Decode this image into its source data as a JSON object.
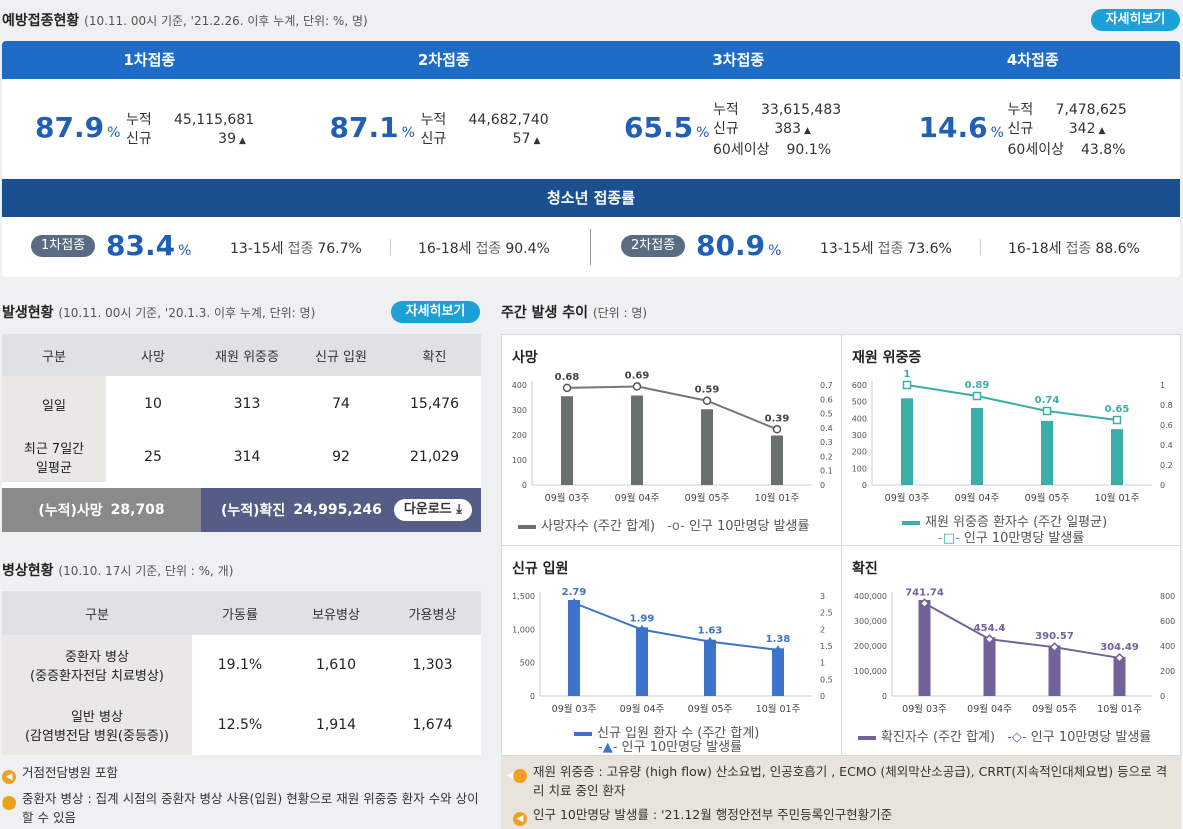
{
  "vaccine": {
    "title": "예방접종현황",
    "subtitle": "(10.11. 00시 기준, '21.2.26. 이후 누계, 단위: %, 명)",
    "more_label": "자세히보기",
    "doses": [
      {
        "label": "1차접종",
        "rate": "87.9",
        "unit": "%",
        "cum_label": "누적",
        "cum": "45,115,681",
        "new_label": "신규",
        "new": "39",
        "elder_label": "",
        "elder": ""
      },
      {
        "label": "2차접종",
        "rate": "87.1",
        "unit": "%",
        "cum_label": "누적",
        "cum": "44,682,740",
        "new_label": "신규",
        "new": "57",
        "elder_label": "",
        "elder": ""
      },
      {
        "label": "3차접종",
        "rate": "65.5",
        "unit": "%",
        "cum_label": "누적",
        "cum": "33,615,483",
        "new_label": "신규",
        "new": "383",
        "elder_label": "60세이상",
        "elder": "90.1%"
      },
      {
        "label": "4차접종",
        "rate": "14.6",
        "unit": "%",
        "cum_label": "누적",
        "cum": "7,478,625",
        "new_label": "신규",
        "new": "342",
        "elder_label": "60세이상",
        "elder": "43.8%"
      }
    ],
    "teen": {
      "title": "청소년 접종률",
      "first": {
        "pill": "1차접종",
        "rate": "83.4",
        "unit": "%",
        "a_age": "13-15세",
        "a_lab": "접종",
        "a_val": "76.7%",
        "b_age": "16-18세",
        "b_lab": "접종",
        "b_val": "90.4%"
      },
      "second": {
        "pill": "2차접종",
        "rate": "80.9",
        "unit": "%",
        "a_age": "13-15세",
        "a_lab": "접종",
        "a_val": "73.6%",
        "b_age": "16-18세",
        "b_lab": "접종",
        "b_val": "88.6%"
      }
    }
  },
  "outbreak": {
    "title": "발생현황",
    "subtitle": "(10.11. 00시 기준, '20.1.3. 이후 누계, 단위: 명)",
    "more_label": "자세히보기",
    "headers": [
      "구분",
      "사망",
      "재원 위중증",
      "신규 입원",
      "확진"
    ],
    "rows": [
      {
        "label": "일일",
        "label2": "",
        "values": [
          "10",
          "313",
          "74",
          "15,476"
        ]
      },
      {
        "label": "최근 7일간",
        "label2": "일평균",
        "values": [
          "25",
          "314",
          "92",
          "21,029"
        ]
      }
    ],
    "cum_death_label": "(누적)사망",
    "cum_death": "28,708",
    "cum_conf_label": "(누적)확진",
    "cum_conf": "24,995,246",
    "download_label": "다운로드"
  },
  "beds": {
    "title": "병상현황",
    "subtitle": "(10.10. 17시 기준, 단위 : %, 개)",
    "headers": [
      "구분",
      "가동률",
      "보유병상",
      "가용병상"
    ],
    "rows": [
      {
        "label": "중환자 병상",
        "label2": "(중증환자전담 치료병상)",
        "values": [
          "19.1%",
          "1,610",
          "1,303"
        ]
      },
      {
        "label": "일반 병상",
        "label2": "(감염병전담 병원(중등증))",
        "values": [
          "12.5%",
          "1,914",
          "1,674"
        ]
      }
    ],
    "notes": [
      "거점전담병원 포함",
      "중환자 병상 : 집계 시점의 중환자 병상 사용(입원) 현황으로 재원 위중증 환자 수와 상이할 수 있음"
    ]
  },
  "weekly": {
    "title": "주간 발생 추이",
    "subtitle": "(단위 : 명)",
    "notes": [
      "재원 위중증 : 고유량 (high flow) 산소요법, 인공호흡기 , ECMO (체외막산소공급), CRRT(지속적인대체요법) 등으로 격리 치료 중인 환자",
      "인구 10만명당 발생률 : '21.12월 행정안전부 주민등록인구현황기준"
    ]
  },
  "colors": {
    "death": "#68716e",
    "severe": "#3aaea8",
    "admit": "#3d73c8",
    "conf": "#73629a"
  },
  "chart_data": [
    {
      "type": "bar",
      "title": "사망",
      "categories": [
        "09월 03주",
        "09월 04주",
        "09월 05주",
        "10월 01주"
      ],
      "series": [
        {
          "name": "사망자수 (주간 합계)",
          "values": [
            355,
            358,
            303,
            198
          ]
        },
        {
          "name": "인구 10만명당 발생률",
          "values": [
            0.68,
            0.69,
            0.59,
            0.39
          ],
          "labels": [
            "0.68",
            "0.69",
            "0.59",
            "0.39"
          ],
          "axis": "right"
        }
      ],
      "ylim": [
        0,
        400
      ],
      "yticks": [
        "0",
        "100",
        "200",
        "300",
        "400"
      ],
      "y2lim": [
        0,
        0.7
      ],
      "y2ticks": [
        "0",
        "0.1",
        "0.2",
        "0.3",
        "0.4",
        "0.5",
        "0.6",
        "0.7"
      ]
    },
    {
      "type": "bar",
      "title": "재원 위중증",
      "categories": [
        "09월 03주",
        "09월 04주",
        "09월 05주",
        "10월 01주"
      ],
      "series": [
        {
          "name": "재원 위중증 환자수 (주간 일평균)",
          "values": [
            520,
            462,
            385,
            335
          ]
        },
        {
          "name": "인구 10만명당 발생률",
          "values": [
            1,
            0.89,
            0.74,
            0.65
          ],
          "labels": [
            "1",
            "0.89",
            "0.74",
            "0.65"
          ],
          "axis": "right"
        }
      ],
      "ylim": [
        0,
        600
      ],
      "yticks": [
        "0",
        "100",
        "200",
        "300",
        "400",
        "500",
        "600"
      ],
      "y2lim": [
        0,
        1
      ],
      "y2ticks": [
        "0",
        "0.2",
        "0.4",
        "0.6",
        "0.8",
        "1"
      ]
    },
    {
      "type": "bar",
      "title": "신규 입원",
      "categories": [
        "09월 03주",
        "09월 04주",
        "09월 05주",
        "10월 01주"
      ],
      "series": [
        {
          "name": "신규 입원 환자 수 (주간 합계)",
          "values": [
            1440,
            1030,
            845,
            715
          ]
        },
        {
          "name": "인구 10만명당 발생률",
          "values": [
            2.79,
            1.99,
            1.63,
            1.38
          ],
          "labels": [
            "2.79",
            "1.99",
            "1.63",
            "1.38"
          ],
          "axis": "right"
        }
      ],
      "ylim": [
        0,
        1500
      ],
      "yticks": [
        "0",
        "500",
        "1,000",
        "1,500"
      ],
      "y2lim": [
        0,
        3
      ],
      "y2ticks": [
        "0",
        "0.5",
        "1",
        "1.5",
        "2",
        "2.5",
        "3"
      ]
    },
    {
      "type": "bar",
      "title": "확진",
      "categories": [
        "09월 03주",
        "09월 04주",
        "09월 05주",
        "10월 01주"
      ],
      "series": [
        {
          "name": "확진자수 (주간 합계)",
          "values": [
            384000,
            235000,
            202000,
            157000
          ]
        },
        {
          "name": "인구 10만명당 발생률",
          "values": [
            741.74,
            454.4,
            390.57,
            304.49
          ],
          "labels": [
            "741.74",
            "454.4",
            "390.57",
            "304.49"
          ],
          "axis": "right"
        }
      ],
      "ylim": [
        0,
        400000
      ],
      "yticks": [
        "0",
        "100,000",
        "200,000",
        "300,000",
        "400,000"
      ],
      "y2lim": [
        0,
        800
      ],
      "y2ticks": [
        "0",
        "200",
        "400",
        "600",
        "800"
      ]
    }
  ]
}
